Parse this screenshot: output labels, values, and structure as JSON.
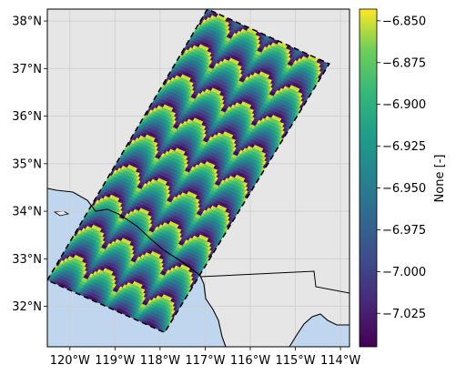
{
  "map": {
    "lon_range": [
      -120.5,
      -113.8
    ],
    "lat_range": [
      31.15,
      38.25
    ],
    "lon_ticks": [
      {
        "value": -120,
        "label": "120°W"
      },
      {
        "value": -119,
        "label": "119°W"
      },
      {
        "value": -118,
        "label": "118°W"
      },
      {
        "value": -117,
        "label": "117°W"
      },
      {
        "value": -116,
        "label": "116°W"
      },
      {
        "value": -115,
        "label": "115°W"
      },
      {
        "value": -114,
        "label": "114°W"
      }
    ],
    "lat_ticks": [
      {
        "value": 32,
        "label": "32°N"
      },
      {
        "value": 33,
        "label": "33°N"
      },
      {
        "value": 34,
        "label": "34°N"
      },
      {
        "value": 35,
        "label": "35°N"
      },
      {
        "value": 36,
        "label": "36°N"
      },
      {
        "value": 37,
        "label": "37°N"
      },
      {
        "value": 38,
        "label": "38°N"
      }
    ],
    "colors": {
      "land": "#e6e6e6",
      "ocean": "#c0d5ee",
      "grid": "#cfcfcf",
      "border": "#000000"
    },
    "swath_corners_lonlat": [
      [
        -120.5,
        32.55
      ],
      [
        -116.95,
        38.25
      ],
      [
        -114.25,
        37.1
      ],
      [
        -117.9,
        31.45
      ]
    ],
    "swath_pattern": {
      "along_scales": 9,
      "cross_scallops": 4
    }
  },
  "colorbar": {
    "label": "None [-]",
    "range": [
      -7.045,
      -6.843
    ],
    "ticks": [
      {
        "value": -6.85,
        "label": "−6.850"
      },
      {
        "value": -6.875,
        "label": "−6.875"
      },
      {
        "value": -6.9,
        "label": "−6.900"
      },
      {
        "value": -6.925,
        "label": "−6.925"
      },
      {
        "value": -6.95,
        "label": "−6.950"
      },
      {
        "value": -6.975,
        "label": "−6.975"
      },
      {
        "value": -7.0,
        "label": "−7.000"
      },
      {
        "value": -7.025,
        "label": "−7.025"
      }
    ],
    "colormap": "viridis"
  }
}
